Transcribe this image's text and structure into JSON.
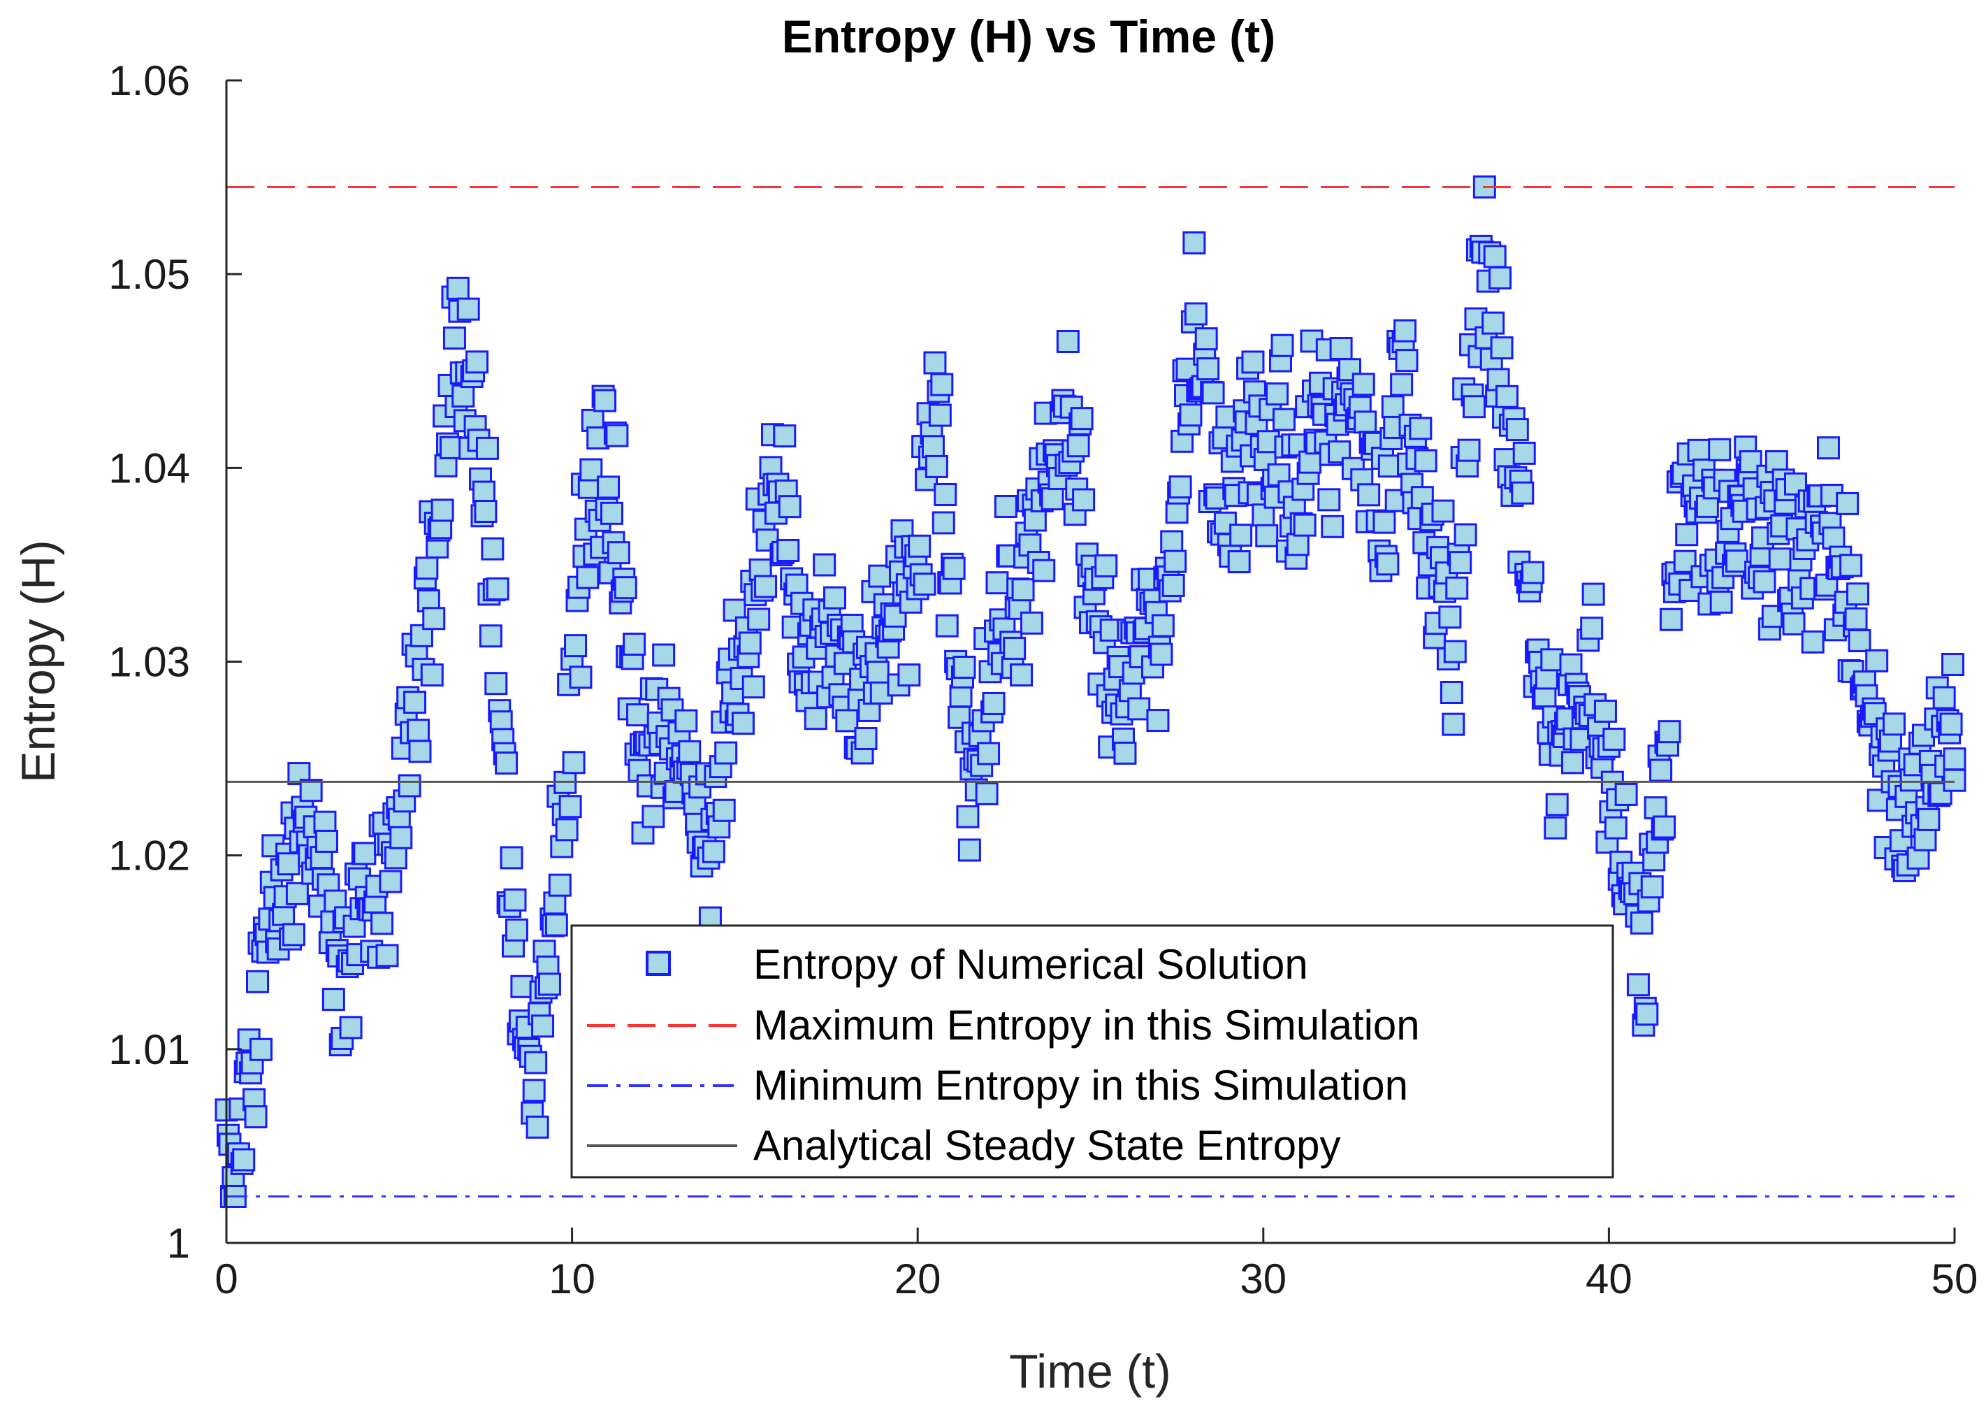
{
  "chart_data": {
    "type": "scatter",
    "title": "Entropy (H) vs Time (t)",
    "xlabel": "Time (t)",
    "ylabel": "Entropy (H)",
    "xlim": [
      0,
      50
    ],
    "ylim": [
      1,
      1.06
    ],
    "x_ticks": [
      0,
      10,
      20,
      30,
      40,
      50
    ],
    "x_tick_labels": [
      "0",
      "10",
      "20",
      "30",
      "40",
      "50"
    ],
    "y_ticks": [
      1,
      1.01,
      1.02,
      1.03,
      1.04,
      1.05,
      1.06
    ],
    "y_tick_labels": [
      "1",
      "1.01",
      "1.02",
      "1.03",
      "1.04",
      "1.05",
      "1.06"
    ],
    "grid": false,
    "legend_position": "bottom-center",
    "series": [
      {
        "name": "Entropy of Numerical Solution",
        "kind": "markers",
        "marker": "square",
        "face_color": "#a6d8e8",
        "edge_color": "#1a1aff",
        "sample_step": 0.1,
        "envelope_t": [
          0,
          0.3,
          0.5,
          0.8,
          1.2,
          1.6,
          2.0,
          2.5,
          2.9,
          3.4,
          4.0,
          4.6,
          5.2,
          5.8,
          6.3,
          6.8,
          7.2,
          7.6,
          8.0,
          8.5,
          9.0,
          9.5,
          10.0,
          10.5,
          11.0,
          11.5,
          12.0,
          12.5,
          13.0,
          13.5,
          14.0,
          14.5,
          15.0,
          15.5,
          16.0,
          16.5,
          17.0,
          17.5,
          18.0,
          18.5,
          19.0,
          19.5,
          20.0,
          20.5,
          21.0,
          21.5,
          22.0,
          22.5,
          23.0,
          23.5,
          24.0,
          24.5,
          25.0,
          25.5,
          26.0,
          26.5,
          27.0,
          27.5,
          28.0,
          28.5,
          29.0,
          29.5,
          30.0,
          30.5,
          31.0,
          31.5,
          32.0,
          32.5,
          33.0,
          33.5,
          34.0,
          34.5,
          35.0,
          35.5,
          36.0,
          36.3,
          36.6,
          37.0,
          37.5,
          38.0,
          38.5,
          39.0,
          39.5,
          40.0,
          40.5,
          41.0,
          41.5,
          42.0,
          42.5,
          43.0,
          43.5,
          44.0,
          44.5,
          45.0,
          45.5,
          46.0,
          46.5,
          47.0,
          47.5,
          48.0,
          48.5,
          49.0,
          49.5,
          50.0
        ],
        "envelope_h": [
          1.005,
          1.003,
          1.007,
          1.01,
          1.015,
          1.018,
          1.02,
          1.022,
          1.018,
          1.012,
          1.019,
          1.017,
          1.025,
          1.032,
          1.04,
          1.048,
          1.044,
          1.036,
          1.026,
          1.012,
          1.008,
          1.018,
          1.028,
          1.038,
          1.04,
          1.035,
          1.024,
          1.027,
          1.025,
          1.022,
          1.022,
          1.027,
          1.03,
          1.035,
          1.04,
          1.033,
          1.03,
          1.031,
          1.028,
          1.03,
          1.03,
          1.032,
          1.034,
          1.044,
          1.033,
          1.024,
          1.027,
          1.035,
          1.032,
          1.038,
          1.04,
          1.042,
          1.035,
          1.03,
          1.028,
          1.033,
          1.03,
          1.038,
          1.048,
          1.042,
          1.038,
          1.041,
          1.039,
          1.042,
          1.036,
          1.043,
          1.041,
          1.043,
          1.04,
          1.036,
          1.044,
          1.04,
          1.035,
          1.031,
          1.045,
          1.052,
          1.047,
          1.044,
          1.038,
          1.032,
          1.024,
          1.027,
          1.03,
          1.025,
          1.018,
          1.014,
          1.022,
          1.035,
          1.04,
          1.036,
          1.037,
          1.038,
          1.036,
          1.037,
          1.035,
          1.036,
          1.036,
          1.034,
          1.028,
          1.024,
          1.022,
          1.025,
          1.024,
          1.026
        ]
      },
      {
        "name": "Maximum Entropy in this Simulation",
        "kind": "hline",
        "value": 1.0545,
        "color": "#ff3333",
        "style": "dashed"
      },
      {
        "name": "Minimum Entropy in this Simulation",
        "kind": "hline",
        "value": 1.0024,
        "color": "#3333ff",
        "style": "dashdot"
      },
      {
        "name": "Analytical Steady State Entropy",
        "kind": "hline",
        "value": 1.0238,
        "color": "#555555",
        "style": "solid"
      }
    ]
  }
}
